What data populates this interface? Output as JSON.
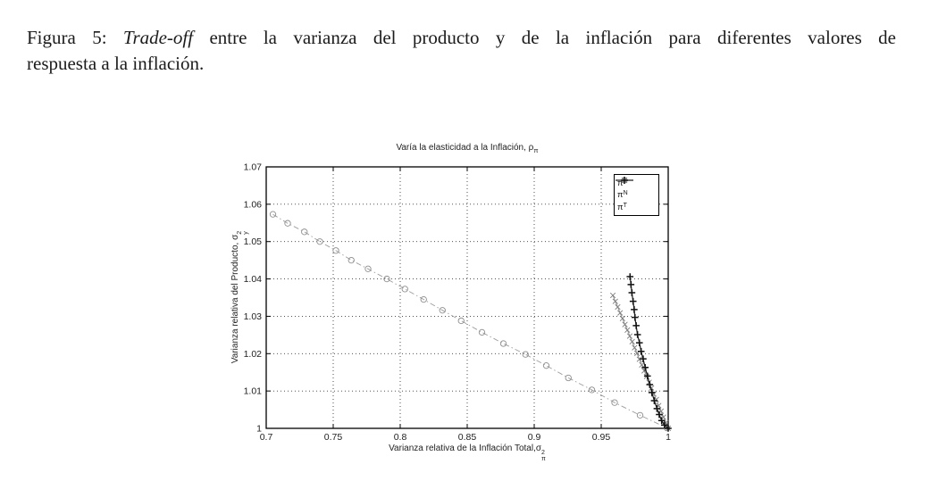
{
  "caption": {
    "prefix": "Figura 5: ",
    "italic": "Trade-off",
    "rest": " entre la varianza del producto y de la inflación para diferentes valores de",
    "line2": "respuesta a la inflación."
  },
  "chart_data": {
    "type": "line",
    "title": {
      "text": "Varía la elasticidad a la Inflación, ρ",
      "sub": "π"
    },
    "xlabel": {
      "text": "Varianza relativa de la Inflación Total,σ",
      "sup": "2",
      "sub": "π"
    },
    "ylabel": {
      "text": "Varianza relativa del Producto, σ",
      "sup": "2",
      "sub": "y"
    },
    "xlim": [
      0.7,
      1.0
    ],
    "ylim": [
      1.0,
      1.07
    ],
    "xticks": {
      "values": [
        0.7,
        0.75,
        0.8,
        0.85,
        0.9,
        0.95,
        1.0
      ],
      "labels": [
        "0.7",
        "0.75",
        "0.8",
        "0.85",
        "0.9",
        "0.95",
        "1"
      ]
    },
    "yticks": {
      "values": [
        1.0,
        1.01,
        1.02,
        1.03,
        1.04,
        1.05,
        1.06,
        1.07
      ],
      "labels": [
        "1",
        "1.01",
        "1.02",
        "1.03",
        "1.04",
        "1.05",
        "1.06",
        "1.07"
      ]
    },
    "grid": "dotted",
    "grid_color": "#3a3a3a",
    "frame_color": "#000000",
    "legend": {
      "position": "top-right",
      "entries": [
        {
          "label": "π",
          "sup": ""
        },
        {
          "label": "π",
          "sup": "N"
        },
        {
          "label": "π",
          "sup": "T"
        }
      ]
    },
    "series": [
      {
        "name": "pi",
        "line": "dashdot",
        "marker": "circle",
        "color": "#9d9d9d",
        "marker_color": "#8f8f8f",
        "width": 0.9,
        "points": [
          [
            0.705,
            1.0573
          ],
          [
            0.716,
            1.0549
          ],
          [
            0.7285,
            1.0526
          ],
          [
            0.74,
            1.05
          ],
          [
            0.752,
            1.0476
          ],
          [
            0.7635,
            1.045
          ],
          [
            0.776,
            1.0427
          ],
          [
            0.79,
            1.04
          ],
          [
            0.8035,
            1.0373
          ],
          [
            0.8175,
            1.0345
          ],
          [
            0.8315,
            1.0316
          ],
          [
            0.8455,
            1.0288
          ],
          [
            0.861,
            1.0257
          ],
          [
            0.877,
            1.0227
          ],
          [
            0.8935,
            1.0198
          ],
          [
            0.909,
            1.0168
          ],
          [
            0.9255,
            1.0135
          ],
          [
            0.943,
            1.0103
          ],
          [
            0.96,
            1.0069
          ],
          [
            0.979,
            1.0035
          ],
          [
            0.999,
            1.0001
          ]
        ]
      },
      {
        "name": "pi-N",
        "line": "solid",
        "marker": "x",
        "color": "#8a8a8a",
        "marker_color": "#7c7c7c",
        "width": 0.9,
        "points": [
          [
            0.9587,
            1.0356
          ],
          [
            0.9605,
            1.034
          ],
          [
            0.9623,
            1.0325
          ],
          [
            0.9641,
            1.0309
          ],
          [
            0.9659,
            1.0294
          ],
          [
            0.9677,
            1.0278
          ],
          [
            0.9695,
            1.0263
          ],
          [
            0.9713,
            1.0247
          ],
          [
            0.9731,
            1.0232
          ],
          [
            0.9749,
            1.0216
          ],
          [
            0.9767,
            1.0201
          ],
          [
            0.9785,
            1.0185
          ],
          [
            0.9803,
            1.017
          ],
          [
            0.9821,
            1.0154
          ],
          [
            0.9839,
            1.0139
          ],
          [
            0.9857,
            1.0123
          ],
          [
            0.9875,
            1.0108
          ],
          [
            0.9893,
            1.0092
          ],
          [
            0.9911,
            1.0077
          ],
          [
            0.9929,
            1.0061
          ],
          [
            0.9947,
            1.0046
          ],
          [
            0.9965,
            1.003
          ],
          [
            0.9983,
            1.0015
          ],
          [
            1.0,
            1.0
          ]
        ]
      },
      {
        "name": "pi-T",
        "line": "solid",
        "marker": "plus",
        "color": "#1e1e1e",
        "marker_color": "#111111",
        "width": 1.2,
        "points": [
          [
            0.9715,
            1.0406
          ],
          [
            0.9722,
            1.0385
          ],
          [
            0.9729,
            1.0363
          ],
          [
            0.9738,
            1.034
          ],
          [
            0.9746,
            1.0318
          ],
          [
            0.9752,
            1.0297
          ],
          [
            0.9761,
            1.0275
          ],
          [
            0.9771,
            1.0251
          ],
          [
            0.9785,
            1.0229
          ],
          [
            0.9798,
            1.0206
          ],
          [
            0.9813,
            1.0186
          ],
          [
            0.9828,
            1.0163
          ],
          [
            0.9845,
            1.014
          ],
          [
            0.9862,
            1.0117
          ],
          [
            0.9878,
            1.0096
          ],
          [
            0.9896,
            1.0074
          ],
          [
            0.9916,
            1.0053
          ],
          [
            0.9933,
            1.0037
          ],
          [
            0.9951,
            1.0021
          ],
          [
            0.9972,
            1.0009
          ],
          [
            1.0,
            1.0
          ]
        ]
      }
    ]
  }
}
